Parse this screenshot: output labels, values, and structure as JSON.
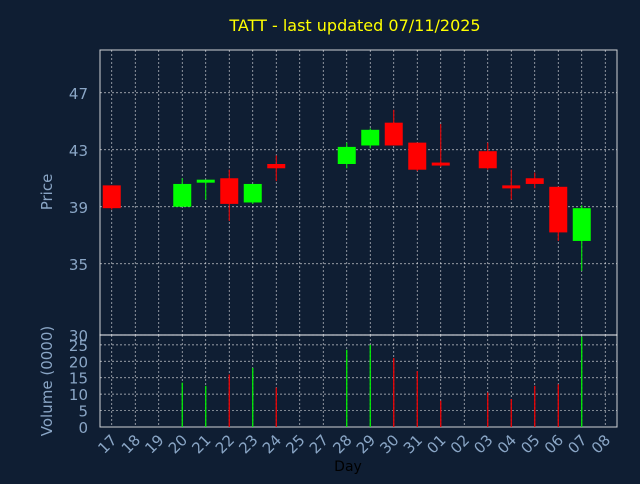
{
  "title": "TATT - last updated 07/11/2025",
  "colors": {
    "background": "#0f1e33",
    "plot_border": "#ffffff",
    "grid": "#ffffff",
    "axis_text": "#8aa6c6",
    "title": "#ffff00",
    "up": "#00ff00",
    "down": "#ff0000",
    "xlabel": "#000000"
  },
  "chart_data": [
    {
      "type": "candlestick",
      "ylabel": "Price",
      "ylim": [
        30,
        50
      ],
      "yticks": [
        30,
        35,
        39,
        43,
        47
      ],
      "grid": true,
      "x_count": 22,
      "candles": [
        {
          "x": 0,
          "open": 40.5,
          "high": 40.5,
          "low": 38.8,
          "close": 38.9
        },
        {
          "x": 3,
          "open": 39.0,
          "high": 41.0,
          "low": 39.0,
          "close": 40.6
        },
        {
          "x": 4,
          "open": 40.7,
          "high": 40.8,
          "low": 39.5,
          "close": 40.9
        },
        {
          "x": 5,
          "open": 41.0,
          "high": 41.6,
          "low": 38.0,
          "close": 39.2
        },
        {
          "x": 6,
          "open": 39.3,
          "high": 40.6,
          "low": 39.2,
          "close": 40.6
        },
        {
          "x": 7,
          "open": 42.0,
          "high": 42.6,
          "low": 40.8,
          "close": 41.7
        },
        {
          "x": 10,
          "open": 42.0,
          "high": 43.5,
          "low": 41.7,
          "close": 43.2
        },
        {
          "x": 11,
          "open": 43.3,
          "high": 44.5,
          "low": 43.1,
          "close": 44.4
        },
        {
          "x": 12,
          "open": 44.9,
          "high": 45.8,
          "low": 43.3,
          "close": 43.3
        },
        {
          "x": 13,
          "open": 43.5,
          "high": 43.5,
          "low": 41.5,
          "close": 41.6
        },
        {
          "x": 14,
          "open": 42.1,
          "high": 44.8,
          "low": 41.8,
          "close": 41.9
        },
        {
          "x": 16,
          "open": 42.9,
          "high": 43.5,
          "low": 41.6,
          "close": 41.7
        },
        {
          "x": 17,
          "open": 40.5,
          "high": 41.6,
          "low": 39.5,
          "close": 40.3
        },
        {
          "x": 18,
          "open": 41.0,
          "high": 41.4,
          "low": 40.3,
          "close": 40.6
        },
        {
          "x": 19,
          "open": 40.4,
          "high": 40.4,
          "low": 36.6,
          "close": 37.2
        },
        {
          "x": 20,
          "open": 36.6,
          "high": 39.1,
          "low": 34.5,
          "close": 38.9
        }
      ]
    },
    {
      "type": "bar",
      "ylabel": "Volume (0000)",
      "ylim": [
        0,
        28
      ],
      "yticks": [
        0,
        5,
        10,
        15,
        20,
        25
      ],
      "xlabel": "Day",
      "categories": [
        "17",
        "18",
        "19",
        "20",
        "21",
        "22",
        "23",
        "24",
        "25",
        "27",
        "28",
        "29",
        "30",
        "31",
        "01",
        "02",
        "03",
        "04",
        "05",
        "06",
        "07",
        "08"
      ],
      "bars": [
        {
          "x": 3,
          "value": 13.5,
          "dir": "up"
        },
        {
          "x": 4,
          "value": 12.5,
          "dir": "up"
        },
        {
          "x": 5,
          "value": 16.0,
          "dir": "down"
        },
        {
          "x": 6,
          "value": 18.0,
          "dir": "up"
        },
        {
          "x": 7,
          "value": 12.0,
          "dir": "down"
        },
        {
          "x": 10,
          "value": 23.5,
          "dir": "up"
        },
        {
          "x": 11,
          "value": 25.0,
          "dir": "up"
        },
        {
          "x": 12,
          "value": 21.0,
          "dir": "down"
        },
        {
          "x": 13,
          "value": 17.0,
          "dir": "down"
        },
        {
          "x": 14,
          "value": 8.0,
          "dir": "down"
        },
        {
          "x": 16,
          "value": 10.5,
          "dir": "down"
        },
        {
          "x": 17,
          "value": 8.5,
          "dir": "down"
        },
        {
          "x": 18,
          "value": 12.5,
          "dir": "down"
        },
        {
          "x": 19,
          "value": 13.0,
          "dir": "down"
        },
        {
          "x": 20,
          "value": 27.5,
          "dir": "up"
        }
      ]
    }
  ]
}
